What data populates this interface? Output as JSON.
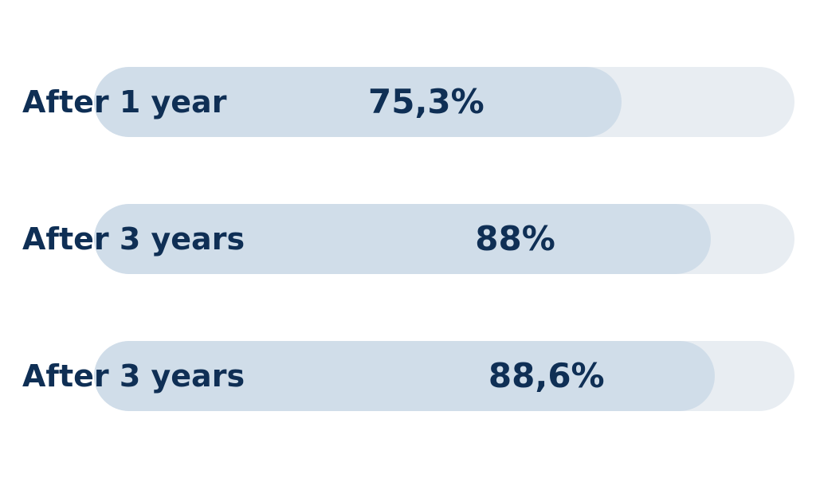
{
  "colors": {
    "track": "#e8edf2",
    "fill": "#d0dde9",
    "text": "#0f2f55"
  },
  "chart_data": {
    "type": "bar",
    "orientation": "horizontal",
    "xlim": [
      0,
      100
    ],
    "unit": "%",
    "grid": false,
    "categories": [
      "After 1 year",
      "After 3 years",
      "After 3 years"
    ],
    "values": [
      75.3,
      88,
      88.6
    ],
    "value_labels": [
      "75,3%",
      "88%",
      "88,6%"
    ]
  }
}
